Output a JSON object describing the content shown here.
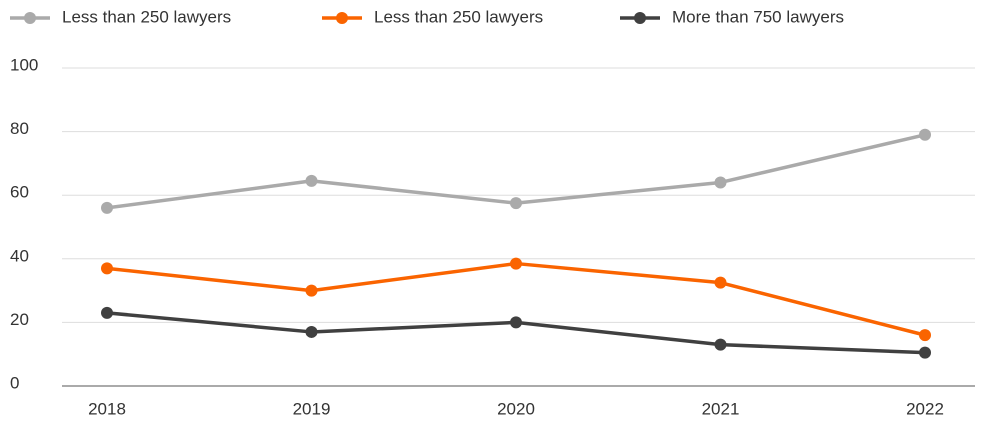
{
  "chart_data": {
    "type": "line",
    "categories": [
      "2018",
      "2019",
      "2020",
      "2021",
      "2022"
    ],
    "series": [
      {
        "name": "Less than 250 lawyers",
        "color": "#aaaaaa",
        "values": [
          56,
          64.5,
          57.5,
          64,
          79
        ]
      },
      {
        "name": "Less than 250 lawyers",
        "color": "#fa6400",
        "values": [
          37,
          30,
          38.5,
          32.5,
          16
        ]
      },
      {
        "name": "More than 750 lawyers",
        "color": "#404040",
        "values": [
          23,
          17,
          20,
          13,
          10.5
        ]
      }
    ],
    "ylim": [
      0,
      100
    ],
    "yticks": [
      0,
      20,
      40,
      60,
      80,
      100
    ],
    "grid": true,
    "legend": "top"
  }
}
